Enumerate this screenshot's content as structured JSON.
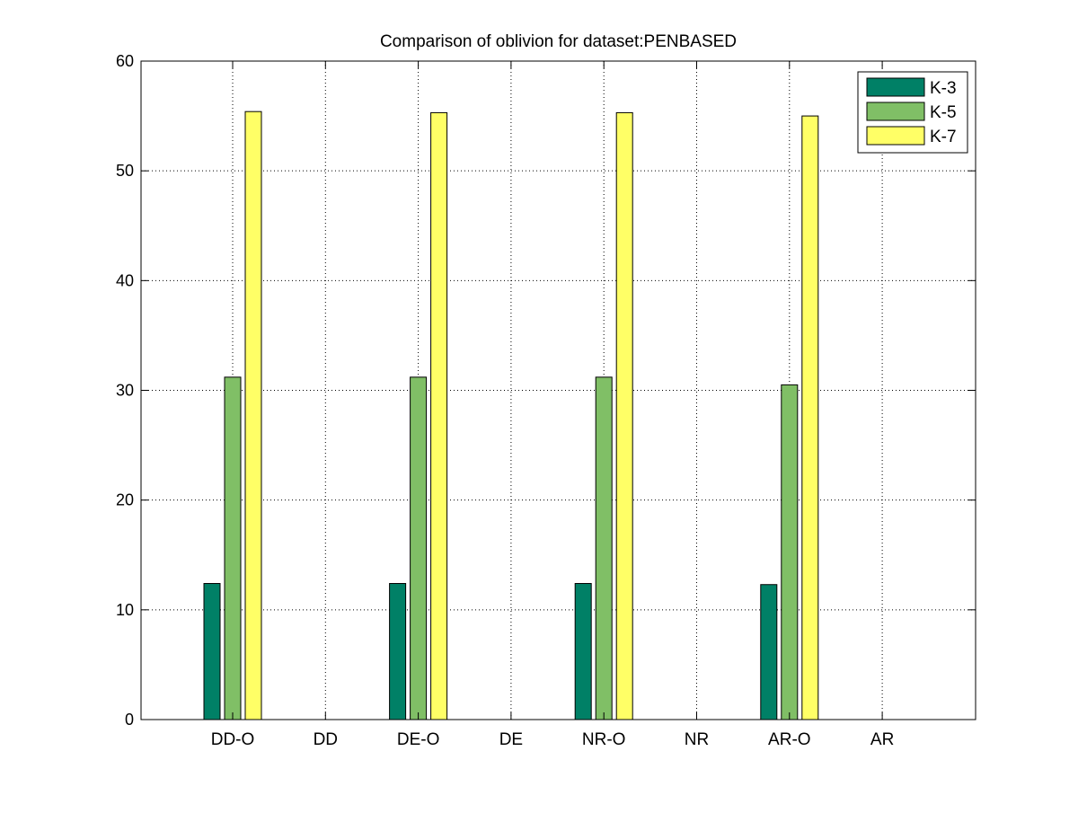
{
  "chart_data": {
    "type": "bar",
    "title": "Comparison of oblivion for dataset:PENBASED",
    "xlabel": "",
    "ylabel": "",
    "categories": [
      "DD-O",
      "DD",
      "DE-O",
      "DE",
      "NR-O",
      "NR",
      "AR-O",
      "AR"
    ],
    "ylim": [
      0,
      60
    ],
    "yticks": [
      0,
      10,
      20,
      30,
      40,
      50,
      60
    ],
    "grid": true,
    "legend_position": "top-right",
    "series": [
      {
        "name": "K-3",
        "color": "#008066",
        "values": [
          12.4,
          0,
          12.4,
          0,
          12.4,
          0,
          12.3,
          0
        ]
      },
      {
        "name": "K-5",
        "color": "#80BF66",
        "values": [
          31.2,
          0,
          31.2,
          0,
          31.2,
          0,
          30.5,
          0
        ]
      },
      {
        "name": "K-7",
        "color": "#FFFF66",
        "values": [
          55.4,
          0,
          55.3,
          0,
          55.3,
          0,
          55.0,
          0
        ]
      }
    ]
  }
}
